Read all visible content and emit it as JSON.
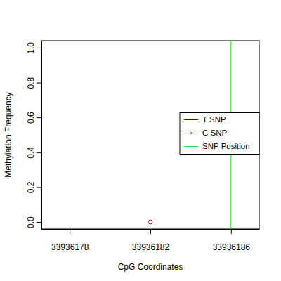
{
  "chart_data": {
    "type": "scatter",
    "x_label": "CpG Coordinates",
    "y_label": "Methylation Frequency",
    "x": [
      33936182
    ],
    "series": [
      {
        "name": "T SNP",
        "color": "#1a1a9c",
        "values": [
          null
        ],
        "marker": "circle"
      },
      {
        "name": "C SNP",
        "color": "#cc1020",
        "values": [
          0
        ],
        "marker": "circle"
      },
      {
        "name": "SNP Position",
        "type": "vline",
        "color": "#22dd22",
        "x": [
          33936186
        ]
      }
    ],
    "xlim": [
      33936176.6,
      33936187.4
    ],
    "ylim": [
      -0.04,
      1.04
    ],
    "xticks": [
      33936178,
      33936182,
      33936186
    ],
    "yticks": [
      {
        "value": 0,
        "label": "0.0"
      },
      {
        "value": 0.2,
        "label": "0.2"
      },
      {
        "value": 0.4,
        "label": "0.4"
      },
      {
        "value": 0.6,
        "label": "0.6"
      },
      {
        "value": 0.8,
        "label": "0.8"
      },
      {
        "value": 1,
        "label": "1.0"
      }
    ],
    "legend": "right"
  }
}
